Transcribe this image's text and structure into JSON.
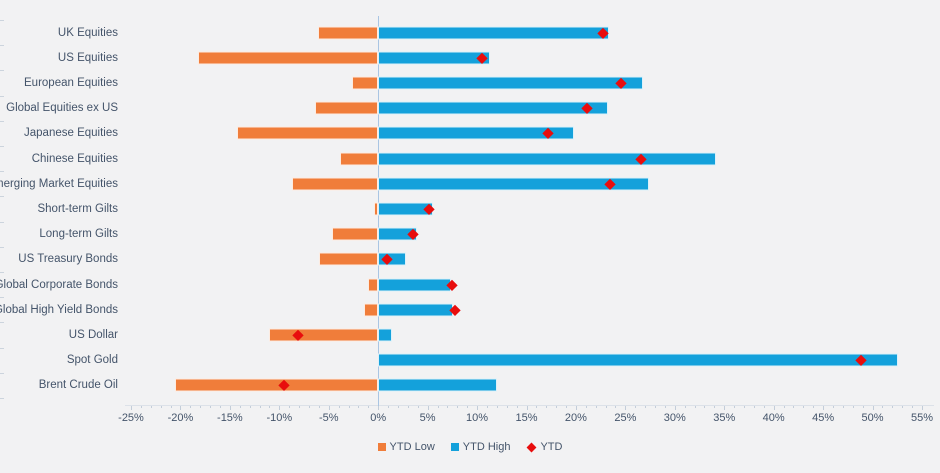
{
  "chart_data": {
    "type": "bar",
    "orientation": "horizontal",
    "title": "",
    "xlabel": "",
    "ylabel": "",
    "x_axis": {
      "min": -25,
      "max": 55,
      "major_step": 5,
      "minor_step": 1,
      "tick_suffix": "%"
    },
    "grid": "off",
    "categories": [
      "UK Equities",
      "US Equities",
      "European Equities",
      "Global Equities ex US",
      "Japanese Equities",
      "Chinese Equities",
      "Emerging Market Equities",
      "Short-term Gilts",
      "Long-term Gilts",
      "US Treasury Bonds",
      "Global Corporate Bonds",
      "Global High Yield Bonds",
      "US Dollar",
      "Spot Gold",
      "Brent Crude Oil"
    ],
    "series": [
      {
        "name": "YTD Low",
        "type": "bar",
        "color": "#f07d3a",
        "values": [
          -6.1,
          -18.2,
          -2.6,
          -6.4,
          -14.3,
          -3.9,
          -8.7,
          -0.4,
          -4.7,
          -6.0,
          -1.0,
          -1.4,
          -11.0,
          0.0,
          -20.5
        ]
      },
      {
        "name": "YTD High",
        "type": "bar",
        "color": "#14a1db",
        "values": [
          23.3,
          11.3,
          26.8,
          23.2,
          19.8,
          34.2,
          27.4,
          5.5,
          3.9,
          2.8,
          7.4,
          7.6,
          1.4,
          52.6,
          12.0
        ]
      },
      {
        "name": "YTD",
        "type": "scatter",
        "marker": "diamond",
        "color": "#e80d0d",
        "values": [
          22.7,
          10.5,
          24.6,
          21.1,
          17.2,
          26.6,
          23.4,
          5.1,
          3.5,
          0.9,
          7.5,
          7.8,
          -8.1,
          48.8,
          -9.5
        ]
      }
    ],
    "legend": {
      "position": "bottom",
      "items": [
        "YTD Low",
        "YTD High",
        "YTD"
      ]
    }
  },
  "colors": {
    "background": "#f2f2f3",
    "text": "#44546a",
    "zero_line": "#a9c5e3",
    "axis_ticks": "#c3cdd9",
    "ytd_low": "#f07d3a",
    "ytd_high": "#14a1db",
    "ytd_marker": "#e80d0d"
  }
}
